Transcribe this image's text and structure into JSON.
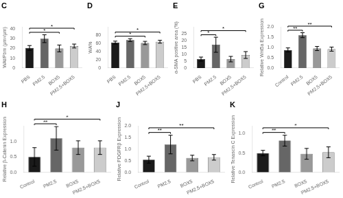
{
  "chart_data": [
    {
      "type": "bar",
      "title": "C",
      "ylabel": "WAt/Pbm (μm²/μm)",
      "categories": [
        "PBS",
        "PM2.5",
        "BOX5",
        "PM2.5+BOX5"
      ],
      "values": [
        20.5,
        30.0,
        20.0,
        22.5
      ],
      "errors": [
        2.5,
        4.0,
        3.5,
        2.0
      ],
      "colors": [
        "#1a1a1a",
        "#666666",
        "#999999",
        "#cccccc"
      ],
      "ylim": [
        0,
        42
      ],
      "yticks": [
        0,
        10,
        20,
        30,
        40
      ],
      "grid": false,
      "annotations": [
        {
          "from": "PBS",
          "to": "BOX5",
          "text": "*"
        },
        {
          "from": "PBS",
          "to": "PM2.5+BOX5",
          "text": "*"
        }
      ]
    },
    {
      "type": "bar",
      "title": "D",
      "ylabel": "WA%",
      "categories": [
        "PBS",
        "PM2.5",
        "BOX5",
        "PM2.5+BOX5"
      ],
      "values": [
        62.0,
        68.0,
        61.0,
        64.0
      ],
      "errors": [
        3.5,
        3.5,
        4.0,
        3.5
      ],
      "colors": [
        "#1a1a1a",
        "#666666",
        "#999999",
        "#cccccc"
      ],
      "ylim": [
        0,
        100
      ],
      "yticks": [
        0,
        20,
        40,
        60,
        80
      ],
      "grid": false,
      "annotations": [
        {
          "from": "PBS",
          "to": "BOX5",
          "text": "*"
        },
        {
          "from": "PBS",
          "to": "PM2.5+BOX5",
          "text": "*"
        }
      ]
    },
    {
      "type": "bar",
      "title": "E",
      "ylabel": "α-SMA positive area (%)",
      "categories": [
        "PBS",
        "PM2.5",
        "BOX5",
        "PM2.5+BOX5"
      ],
      "values": [
        6.5,
        17.0,
        6.5,
        9.5
      ],
      "errors": [
        1.5,
        5.5,
        2.0,
        2.5
      ],
      "colors": [
        "#1a1a1a",
        "#666666",
        "#999999",
        "#cccccc"
      ],
      "ylim": [
        0,
        30
      ],
      "yticks": [
        0,
        5,
        10,
        15,
        20,
        25
      ],
      "grid": false,
      "annotations": [
        {
          "from": "PBS",
          "to": "PM2.5",
          "text": "*"
        },
        {
          "from": "PBS",
          "to": "PM2.5+BOX5",
          "text": "*"
        }
      ]
    },
    {
      "type": "bar",
      "title": "G",
      "ylabel": "Relative Wnt5a Expression",
      "categories": [
        "Control",
        "PM2.5",
        "BOX5",
        "PM2.5+BOX5"
      ],
      "values": [
        0.88,
        1.6,
        0.95,
        0.92
      ],
      "errors": [
        0.1,
        0.12,
        0.1,
        0.1
      ],
      "colors": [
        "#1a1a1a",
        "#666666",
        "#999999",
        "#cccccc"
      ],
      "ylim": [
        0,
        2.0
      ],
      "yticks": [
        {
          "value": 0.0,
          "label": "0.0"
        },
        0.5,
        {
          "value": 1.0,
          "label": "1.0"
        },
        1.5,
        {
          "value": 2.0,
          "label": "2.0"
        }
      ],
      "grid": false,
      "annotations": [
        {
          "from": "Control",
          "to": "PM2.5",
          "text": "**"
        },
        {
          "from": "Control",
          "to": "PM2.5+BOX5",
          "text": "**"
        }
      ]
    },
    {
      "type": "bar",
      "title": "H",
      "ylabel": "Relative β-Catenin Expression",
      "categories": [
        "Control",
        "PM2.5",
        "BOX5",
        "PM2.5+BOX5"
      ],
      "values": [
        0.5,
        1.1,
        0.8,
        0.8
      ],
      "errors": [
        0.3,
        0.38,
        0.22,
        0.22
      ],
      "colors": [
        "#1a1a1a",
        "#666666",
        "#999999",
        "#cccccc"
      ],
      "ylim": [
        0,
        1.5
      ],
      "yticks": [
        {
          "value": 0.0,
          "label": "0.0"
        },
        0.5,
        {
          "value": 1.0,
          "label": "1.0"
        }
      ],
      "grid": false,
      "annotations": [
        {
          "from": "Control",
          "to": "PM2.5",
          "text": "**"
        },
        {
          "from": "Control",
          "to": "PM2.5+BOX5",
          "text": "*"
        }
      ]
    },
    {
      "type": "bar",
      "title": "J",
      "ylabel": "Relative PDGFRβ Expression",
      "categories": [
        "Control",
        "PM2.5",
        "BOX5",
        "PM2.5+BOX5"
      ],
      "values": [
        0.55,
        1.2,
        0.62,
        0.65
      ],
      "errors": [
        0.15,
        0.4,
        0.12,
        0.12
      ],
      "colors": [
        "#1a1a1a",
        "#666666",
        "#999999",
        "#cccccc"
      ],
      "ylim": [
        0,
        2.0
      ],
      "yticks": [
        {
          "value": 0.0,
          "label": "0.0"
        },
        0.5,
        {
          "value": 1.0,
          "label": "1.0"
        },
        1.5,
        {
          "value": 2.0,
          "label": "2.0"
        }
      ],
      "grid": false,
      "annotations": [
        {
          "from": "Control",
          "to": "PM2.5",
          "text": "**"
        },
        {
          "from": "Control",
          "to": "PM2.5+BOX5",
          "text": "**"
        }
      ]
    },
    {
      "type": "bar",
      "title": "K",
      "ylabel": "Relative Tenascin C Expression",
      "categories": [
        "Control",
        "PM2.5",
        "BOX5",
        "PM2.5+BOX5"
      ],
      "values": [
        0.5,
        0.82,
        0.48,
        0.52
      ],
      "errors": [
        0.07,
        0.14,
        0.14,
        0.14
      ],
      "colors": [
        "#1a1a1a",
        "#666666",
        "#999999",
        "#cccccc"
      ],
      "ylim": [
        0,
        1.2
      ],
      "yticks": [
        {
          "value": 0.0,
          "label": "0.0"
        },
        0.5,
        {
          "value": 1.0,
          "label": "1.0"
        }
      ],
      "grid": false,
      "annotations": [
        {
          "from": "Control",
          "to": "PM2.5",
          "text": "**"
        },
        {
          "from": "Control",
          "to": "PM2.5+BOX5",
          "text": "*"
        }
      ]
    }
  ]
}
